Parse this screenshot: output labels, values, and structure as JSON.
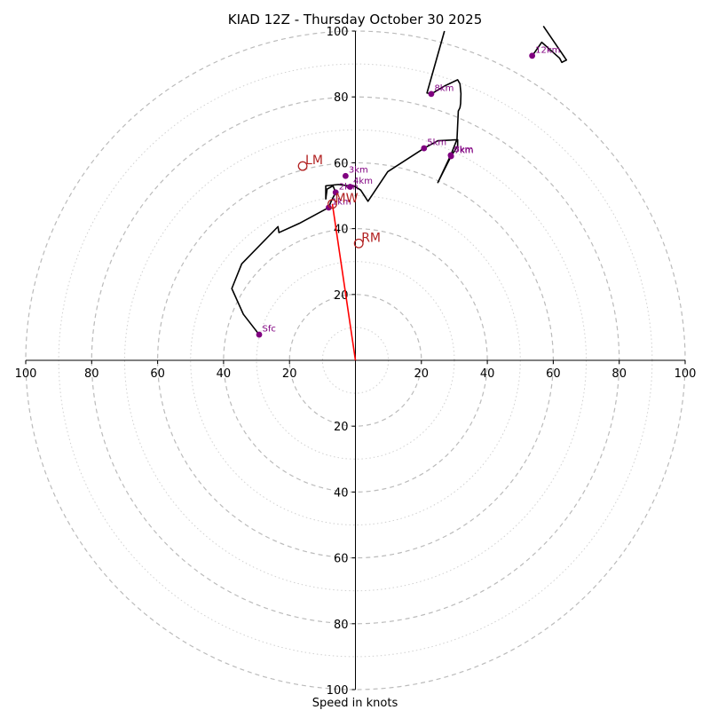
{
  "chart_data": {
    "type": "hodograph",
    "title": "KIAD 12Z - Thursday October 30 2025",
    "xlabel": "Speed in knots",
    "units": "knots",
    "xlim": [
      -100,
      100
    ],
    "ylim": [
      -100,
      100
    ],
    "ring_major": [
      20,
      40,
      60,
      80,
      100
    ],
    "ring_minor": [
      10,
      30,
      50,
      70,
      90
    ],
    "tick_labels": {
      "x": [
        {
          "value": -100,
          "label": "100"
        },
        {
          "value": -80,
          "label": "80"
        },
        {
          "value": -60,
          "label": "60"
        },
        {
          "value": -40,
          "label": "40"
        },
        {
          "value": -20,
          "label": "20"
        },
        {
          "value": 20,
          "label": "20"
        },
        {
          "value": 40,
          "label": "40"
        },
        {
          "value": 60,
          "label": "60"
        },
        {
          "value": 80,
          "label": "80"
        },
        {
          "value": 100,
          "label": "100"
        }
      ],
      "y": [
        {
          "value": 100,
          "label": "100"
        },
        {
          "value": 80,
          "label": "80"
        },
        {
          "value": 60,
          "label": "60"
        },
        {
          "value": 40,
          "label": "40"
        },
        {
          "value": 20,
          "label": "20"
        },
        {
          "value": -20,
          "label": "20"
        },
        {
          "value": -40,
          "label": "40"
        },
        {
          "value": -60,
          "label": "60"
        },
        {
          "value": -80,
          "label": "80"
        },
        {
          "value": -100,
          "label": "100"
        }
      ]
    },
    "trace": {
      "name": "wind profile",
      "color": "#000000",
      "points": [
        [
          -29.2,
          7.8
        ],
        [
          -34,
          14
        ],
        [
          -37.5,
          21.8
        ],
        [
          -34.5,
          29.3
        ],
        [
          -23.5,
          40.6
        ],
        [
          -23.2,
          38.8
        ],
        [
          -17,
          41.6
        ],
        [
          -8.1,
          46.4
        ],
        [
          -7.5,
          48
        ],
        [
          -6,
          51
        ],
        [
          -6.8,
          53
        ],
        [
          -8.6,
          52
        ],
        [
          -9,
          49
        ],
        [
          -9,
          53
        ],
        [
          -5.2,
          53.4
        ],
        [
          -0.2,
          52.8
        ],
        [
          1.6,
          51.7
        ],
        [
          3.8,
          48.3
        ],
        [
          9.8,
          57.3
        ],
        [
          20.8,
          64.4
        ],
        [
          25,
          66.7
        ],
        [
          31,
          67
        ],
        [
          31,
          65
        ],
        [
          29,
          62
        ],
        [
          25,
          54
        ],
        [
          28.9,
          62.3
        ],
        [
          30.8,
          67.1
        ],
        [
          31.2,
          75.7
        ],
        [
          31.7,
          76.7
        ],
        [
          31.9,
          78
        ],
        [
          32,
          81
        ],
        [
          31.7,
          84
        ],
        [
          31,
          85.2
        ],
        [
          27.2,
          83.4
        ],
        [
          23,
          80.9
        ],
        [
          21.7,
          81.2
        ],
        [
          27,
          100
        ]
      ],
      "upper_segment": [
        [
          57,
          101.5
        ],
        [
          64,
          91.2
        ],
        [
          62.6,
          90.5
        ],
        [
          61.9,
          91.8
        ],
        [
          56.5,
          96.6
        ],
        [
          54,
          93
        ]
      ]
    },
    "height_markers": [
      {
        "label": "Sfc",
        "u": -29.2,
        "v": 7.8
      },
      {
        "label": "1km",
        "u": -8.1,
        "v": 46.4
      },
      {
        "label": "2km",
        "u": -6.0,
        "v": 51.0
      },
      {
        "label": "3km",
        "u": -3.0,
        "v": 56.0
      },
      {
        "label": "4km",
        "u": -1.6,
        "v": 52.7
      },
      {
        "label": "5km",
        "u": 20.8,
        "v": 64.4
      },
      {
        "label": "6km",
        "u": 28.9,
        "v": 62.3
      },
      {
        "label": "7km",
        "u": 29.0,
        "v": 62.0
      },
      {
        "label": "8km",
        "u": 23.0,
        "v": 80.9
      },
      {
        "label": "12km",
        "u": 53.6,
        "v": 92.5
      }
    ],
    "storm_motion": [
      {
        "label": "LM",
        "u": -16,
        "v": 59
      },
      {
        "label": "MW",
        "u": -7,
        "v": 47.5
      },
      {
        "label": "RM",
        "u": 1,
        "v": 35.5
      }
    ],
    "shear_vector": {
      "from": [
        0,
        0
      ],
      "to": [
        -7,
        47.5
      ],
      "color": "#ff0000"
    },
    "colors": {
      "trace": "#000000",
      "markers": "#800080",
      "storm_motion": "#b22222",
      "shear": "#ff0000",
      "ring_major": "#bbbbbb",
      "ring_minor": "#d0d0d0"
    }
  }
}
